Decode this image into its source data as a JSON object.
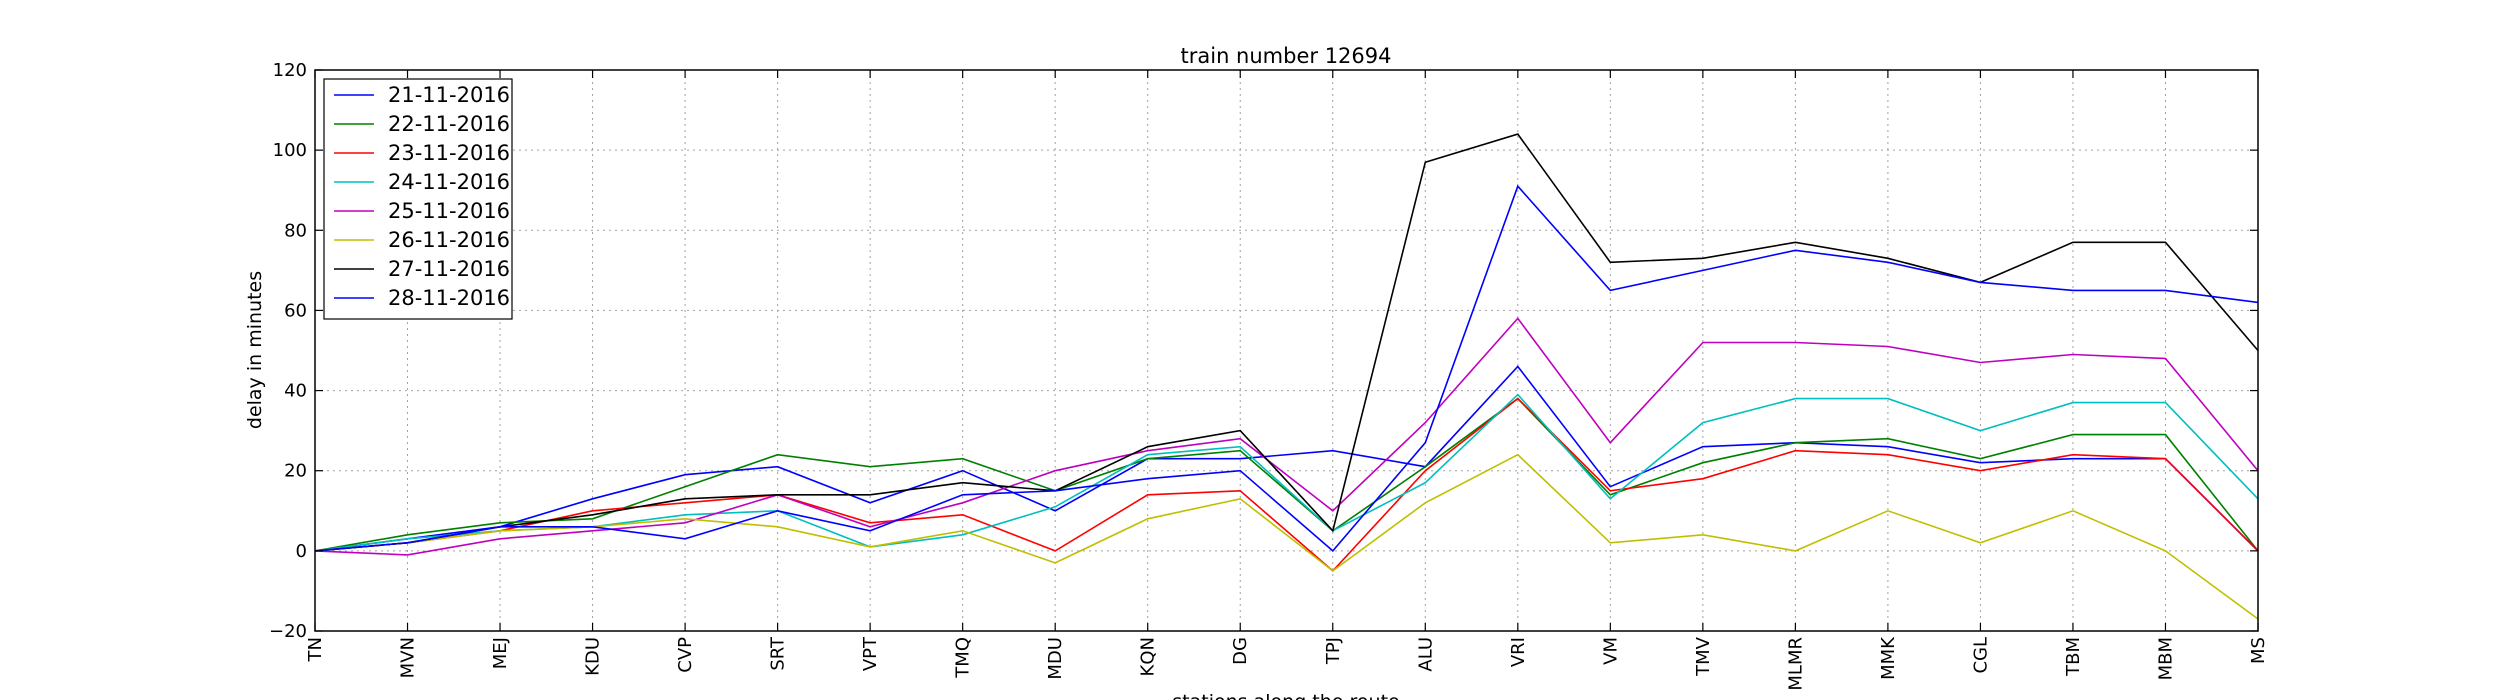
{
  "chart_data": {
    "type": "line",
    "title": "train number 12694",
    "xlabel": "stations along the route",
    "ylabel": "delay in minutes",
    "categories": [
      "TN",
      "MVN",
      "MEJ",
      "KDU",
      "CVP",
      "SRT",
      "VPT",
      "TMQ",
      "MDU",
      "KQN",
      "DG",
      "TPJ",
      "ALU",
      "VRI",
      "VM",
      "TMV",
      "MLMR",
      "MMK",
      "CGL",
      "TBM",
      "MBM",
      "MS"
    ],
    "ylim": [
      -20,
      120
    ],
    "yticks": [
      -20,
      0,
      20,
      40,
      60,
      80,
      100,
      120
    ],
    "grid": true,
    "legend_position": "top-left",
    "series": [
      {
        "name": "21-11-2016",
        "color": "#0000ff",
        "values": [
          0,
          3,
          6,
          13,
          19,
          21,
          12,
          20,
          10,
          23,
          23,
          25,
          21,
          46,
          16,
          26,
          27,
          26,
          22,
          23,
          23,
          0
        ]
      },
      {
        "name": "22-11-2016",
        "color": "#008000",
        "values": [
          0,
          4,
          7,
          8,
          16,
          24,
          21,
          23,
          15,
          23,
          25,
          5,
          21,
          38,
          14,
          22,
          27,
          28,
          23,
          29,
          29,
          0
        ]
      },
      {
        "name": "23-11-2016",
        "color": "#ff0000",
        "values": [
          0,
          2,
          5,
          10,
          12,
          14,
          7,
          9,
          0,
          14,
          15,
          -5,
          20,
          38,
          15,
          18,
          25,
          24,
          20,
          24,
          23,
          0
        ]
      },
      {
        "name": "24-11-2016",
        "color": "#00bfbf",
        "values": [
          0,
          3,
          5,
          6,
          9,
          10,
          1,
          4,
          11,
          24,
          26,
          5,
          17,
          39,
          13,
          32,
          38,
          38,
          30,
          37,
          37,
          13
        ]
      },
      {
        "name": "25-11-2016",
        "color": "#bf00bf",
        "values": [
          0,
          -1,
          3,
          5,
          7,
          14,
          6,
          12,
          20,
          25,
          28,
          10,
          32,
          58,
          27,
          52,
          52,
          51,
          47,
          49,
          48,
          20
        ]
      },
      {
        "name": "26-11-2016",
        "color": "#bfbf00",
        "values": [
          0,
          2,
          5,
          6,
          8,
          6,
          1,
          5,
          -3,
          8,
          13,
          -5,
          12,
          24,
          2,
          4,
          0,
          10,
          2,
          10,
          0,
          -17
        ]
      },
      {
        "name": "27-11-2016",
        "color": "#000000",
        "values": [
          0,
          2,
          6,
          9,
          13,
          14,
          14,
          17,
          15,
          26,
          30,
          5,
          97,
          104,
          72,
          73,
          77,
          73,
          67,
          77,
          77,
          50
        ]
      },
      {
        "name": "28-11-2016",
        "color": "#0000ff",
        "values": [
          0,
          2,
          6,
          6,
          3,
          10,
          5,
          14,
          15,
          18,
          20,
          0,
          27,
          91,
          65,
          70,
          75,
          72,
          67,
          65,
          65,
          62
        ]
      }
    ]
  }
}
